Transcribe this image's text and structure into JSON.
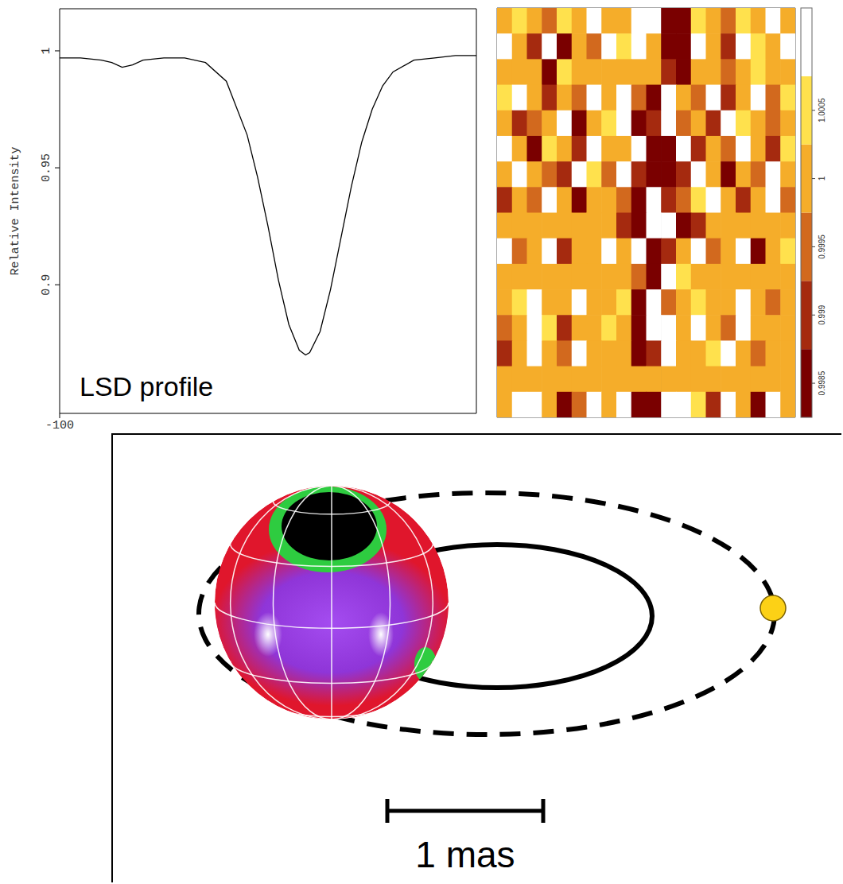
{
  "chart_data": [
    {
      "type": "line",
      "y_label": "Relative Intensity",
      "annotation": "LSD profile",
      "x": [
        -100,
        -90,
        -80,
        -75,
        -70,
        -65,
        -60,
        -50,
        -40,
        -30,
        -20,
        -10,
        -5,
        0,
        5,
        10,
        15,
        18,
        20,
        25,
        30,
        35,
        40,
        45,
        50,
        55,
        60,
        70,
        80,
        90,
        100
      ],
      "values": [
        0.997,
        0.997,
        0.996,
        0.995,
        0.993,
        0.994,
        0.996,
        0.997,
        0.997,
        0.995,
        0.987,
        0.964,
        0.946,
        0.925,
        0.902,
        0.883,
        0.872,
        0.87,
        0.871,
        0.88,
        0.898,
        0.92,
        0.942,
        0.961,
        0.975,
        0.985,
        0.991,
        0.996,
        0.997,
        0.998,
        0.998
      ],
      "color": "#000000",
      "xlim": [
        -100,
        100
      ],
      "xticks": [
        -100
      ],
      "ylim": [
        0.845,
        1.018
      ],
      "yticks": [
        0.9,
        0.95,
        1
      ]
    },
    {
      "type": "heatmap",
      "tick_labels": false,
      "xlim": [
        0,
        20
      ],
      "ylim": [
        0,
        16
      ],
      "vlines": [
        9,
        11,
        13
      ],
      "cells": [
        [
          1,
          1.0005,
          1,
          0.9995,
          1.0005,
          1,
          1.001,
          1,
          1,
          1.001,
          1.001,
          0.9985,
          0.9985,
          1.0005,
          1,
          0.9995,
          1.0005,
          1,
          1.001,
          1
        ],
        [
          1.001,
          1,
          0.999,
          1.001,
          0.9985,
          1,
          0.9995,
          1.001,
          1.0005,
          1.001,
          1,
          0.9985,
          0.9985,
          1.001,
          1,
          0.999,
          1.001,
          1.0005,
          1,
          1.001
        ],
        [
          1,
          1,
          1,
          0.9985,
          1.0005,
          1,
          1,
          1,
          1,
          1,
          1,
          0.999,
          0.9985,
          1,
          1,
          0.9995,
          1,
          1.0005,
          1,
          1
        ],
        [
          1.0005,
          1.001,
          1,
          0.999,
          1,
          0.9995,
          1.001,
          1,
          1.001,
          0.9995,
          0.9985,
          1.001,
          1,
          0.9995,
          1.001,
          0.999,
          1,
          1.001,
          0.9995,
          1.0005
        ],
        [
          1,
          0.999,
          0.9995,
          1,
          1.001,
          0.9985,
          1,
          1.0005,
          1.001,
          0.9985,
          0.999,
          1.001,
          0.9995,
          1,
          0.999,
          1.001,
          1.0005,
          1,
          0.9995,
          1
        ],
        [
          1.001,
          1,
          0.9985,
          1.0005,
          1,
          0.999,
          1.001,
          1,
          1,
          1.001,
          0.9985,
          0.9985,
          1.001,
          0.999,
          1,
          0.9995,
          1.001,
          1,
          0.999,
          1.0005
        ],
        [
          1,
          1.001,
          1,
          0.9995,
          0.999,
          1.001,
          1.0005,
          0.9995,
          1.001,
          0.999,
          0.9985,
          0.9985,
          0.999,
          1.001,
          1,
          0.9985,
          1,
          0.9995,
          1.001,
          1
        ],
        [
          0.999,
          1,
          0.9995,
          1.001,
          1,
          0.9985,
          1,
          1,
          0.9995,
          0.9985,
          1.001,
          0.999,
          0.9995,
          1.0005,
          1.001,
          1,
          0.999,
          1,
          1.001,
          0.9995
        ],
        [
          1,
          1,
          1,
          1,
          1,
          1,
          1,
          1,
          0.999,
          0.9985,
          1.001,
          1.001,
          0.9985,
          0.999,
          1,
          1,
          1,
          1,
          1,
          1
        ],
        [
          1.001,
          0.9995,
          1,
          1.001,
          0.999,
          1,
          1,
          1.001,
          1,
          1.001,
          0.9985,
          0.999,
          1,
          1.001,
          0.9995,
          1,
          1.001,
          0.9985,
          1,
          1.0005
        ],
        [
          1,
          1,
          1,
          1,
          1,
          1,
          1,
          1,
          1,
          0.9995,
          0.9985,
          1.001,
          1.0005,
          1,
          1,
          1,
          1,
          1,
          1,
          1
        ],
        [
          1,
          1.0005,
          1.001,
          1,
          1,
          1.001,
          1,
          1,
          1.0005,
          0.9985,
          1.001,
          0.9995,
          1,
          1.0005,
          1,
          1,
          1.001,
          1,
          0.9995,
          1
        ],
        [
          0.9995,
          1,
          1.001,
          1.0005,
          0.999,
          1,
          1,
          1.0005,
          1,
          0.9985,
          1.001,
          1.001,
          1,
          1.001,
          1,
          0.9995,
          1.001,
          1,
          1,
          1
        ],
        [
          0.999,
          1,
          1.001,
          1,
          0.9995,
          1.001,
          1,
          1,
          1,
          0.9985,
          0.999,
          1.001,
          1,
          1,
          1.0005,
          1.001,
          1,
          0.9995,
          1,
          1
        ],
        [
          1,
          1,
          1,
          1,
          1,
          1,
          1,
          1,
          1,
          1,
          1,
          1,
          1,
          1,
          1,
          1,
          1,
          1,
          1,
          1
        ],
        [
          1,
          1.001,
          1.001,
          1,
          0.9985,
          0.9995,
          1.001,
          1,
          1.001,
          0.9985,
          0.9985,
          1.001,
          1.001,
          1.0005,
          0.999,
          1.001,
          1,
          0.9985,
          1.001,
          1
        ]
      ],
      "colorbar": {
        "range": [
          0.99825,
          1.00125
        ],
        "levels": [
          0.9985,
          0.999,
          0.9995,
          1,
          1.0005,
          1.001
        ],
        "colors": [
          "#7a0000",
          "#a52a0f",
          "#d2691e",
          "#f5ad2a",
          "#ffe14d",
          "#ffffff"
        ],
        "ticks": [
          0.9985,
          0.999,
          0.9995,
          1,
          1.0005
        ]
      }
    }
  ],
  "diagram": {
    "scale_bar": {
      "value": 1,
      "label": "1 mas"
    }
  }
}
